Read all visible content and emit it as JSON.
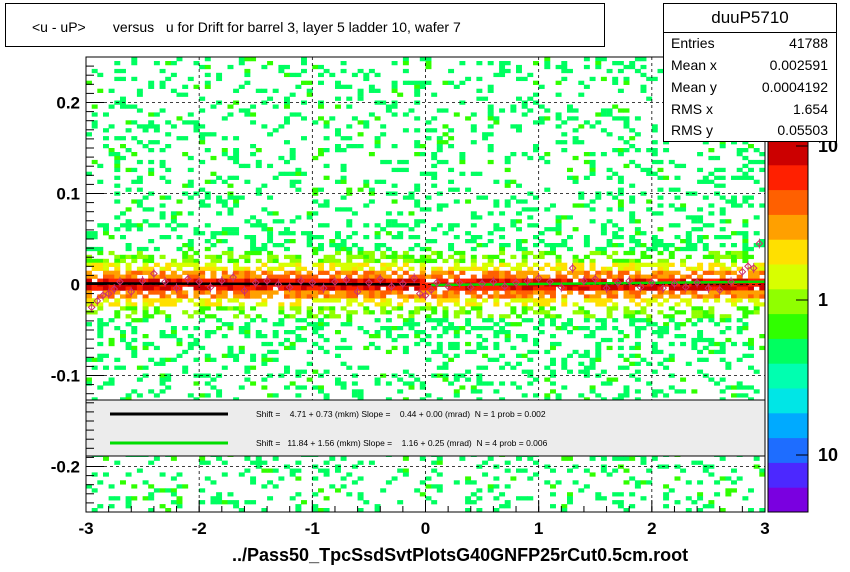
{
  "title": "<u - uP>       versus   u for Drift for barrel 3, layer 5 ladder 10, wafer 7",
  "stats": {
    "name": "duuP5710",
    "rows": [
      {
        "key": "Entries",
        "value": "41788"
      },
      {
        "key": "Mean x",
        "value": "0.002591"
      },
      {
        "key": "Mean y",
        "value": "0.0004192"
      },
      {
        "key": "RMS x",
        "value": "1.654"
      },
      {
        "key": "RMS y",
        "value": "0.05503"
      }
    ]
  },
  "footer": "../Pass50_TpcSsdSvtPlotsG40GNFP25rCut0.5cm.root",
  "chart_data": {
    "type": "heatmap",
    "xlim": [
      -3,
      3
    ],
    "ylim": [
      -0.25,
      0.25
    ],
    "x_ticks": [
      -3,
      -2,
      -1,
      0,
      1,
      2,
      3
    ],
    "y_ticks": [
      -0.2,
      -0.1,
      0,
      0.1,
      0.2
    ],
    "x_tick_labels": [
      "-3",
      "-2",
      "-1",
      "0",
      "1",
      "2",
      "3"
    ],
    "y_tick_labels": [
      "-0.2",
      "-0.1",
      "0",
      "0.1",
      "0.2"
    ],
    "grid": true,
    "color_scale": {
      "type": "log",
      "labels": [
        "10",
        "1",
        "10"
      ],
      "colors": [
        "#7a00e0",
        "#4c28ff",
        "#1e6dff",
        "#00aaff",
        "#00e6e6",
        "#00ffb0",
        "#00ff60",
        "#30ff00",
        "#90ff00",
        "#d8ff00",
        "#ffe000",
        "#ffa000",
        "#ff6000",
        "#ff2000",
        "#cc0000"
      ]
    },
    "legend": {
      "placement": "lower-inner-band",
      "entries": [
        {
          "color": "#000000",
          "text": "Shift =    4.71 + 0.73 (mkm) Slope =    0.44 + 0.00 (mrad)  N = 1 prob = 0.002"
        },
        {
          "color": "#00dd00",
          "text": "Shift =   11.84 + 1.56 (mkm) Slope =    1.16 + 0.25 (mrad)  N = 4 prob = 0.006"
        }
      ]
    },
    "fits": [
      {
        "x": [
          -3,
          -0.05
        ],
        "y": [
          0.0013,
          0.0001
        ]
      },
      {
        "x": [
          0.05,
          3
        ],
        "y": [
          -0.0005,
          0.003
        ]
      }
    ],
    "profile_points": [
      {
        "x": -2.95,
        "y": -0.025
      },
      {
        "x": -2.9,
        "y": -0.018
      },
      {
        "x": -2.85,
        "y": -0.012
      },
      {
        "x": -2.8,
        "y": -0.01
      },
      {
        "x": -2.75,
        "y": -0.005
      },
      {
        "x": -2.7,
        "y": 0.003
      },
      {
        "x": -2.6,
        "y": -0.008
      },
      {
        "x": -2.5,
        "y": 0.004
      },
      {
        "x": -2.4,
        "y": 0.012
      },
      {
        "x": -2.3,
        "y": 0.003
      },
      {
        "x": -2.2,
        "y": -0.004
      },
      {
        "x": -2.1,
        "y": 0.006
      },
      {
        "x": -2.0,
        "y": 0.003
      },
      {
        "x": -1.9,
        "y": -0.003
      },
      {
        "x": -1.8,
        "y": 0.004
      },
      {
        "x": -1.7,
        "y": 0.008
      },
      {
        "x": -1.6,
        "y": -0.007
      },
      {
        "x": -1.5,
        "y": 0.002
      },
      {
        "x": -1.4,
        "y": 0.004
      },
      {
        "x": -1.3,
        "y": 0.0
      },
      {
        "x": -1.2,
        "y": -0.003
      },
      {
        "x": -1.1,
        "y": 0.004
      },
      {
        "x": -1.0,
        "y": 0.002
      },
      {
        "x": -0.9,
        "y": -0.004
      },
      {
        "x": -0.8,
        "y": 0.003
      },
      {
        "x": -0.7,
        "y": 0.005
      },
      {
        "x": -0.6,
        "y": -0.008
      },
      {
        "x": -0.5,
        "y": 0.002
      },
      {
        "x": -0.4,
        "y": 0.006
      },
      {
        "x": -0.3,
        "y": -0.002
      },
      {
        "x": -0.2,
        "y": 0.001
      },
      {
        "x": -0.1,
        "y": 0.007
      },
      {
        "x": -0.05,
        "y": -0.01
      },
      {
        "x": 0.0,
        "y": -0.012
      },
      {
        "x": 0.05,
        "y": -0.006
      },
      {
        "x": 0.1,
        "y": 0.002
      },
      {
        "x": 0.2,
        "y": -0.002
      },
      {
        "x": 0.3,
        "y": 0.002
      },
      {
        "x": 0.4,
        "y": -0.003
      },
      {
        "x": 0.5,
        "y": 0.001
      },
      {
        "x": 0.6,
        "y": 0.003
      },
      {
        "x": 0.7,
        "y": -0.002
      },
      {
        "x": 0.8,
        "y": 0.002
      },
      {
        "x": 0.9,
        "y": 0.004
      },
      {
        "x": 1.0,
        "y": 0.007
      },
      {
        "x": 1.1,
        "y": 0.003
      },
      {
        "x": 1.2,
        "y": -0.003
      },
      {
        "x": 1.3,
        "y": 0.018
      },
      {
        "x": 1.4,
        "y": 0.004
      },
      {
        "x": 1.5,
        "y": 0.006
      },
      {
        "x": 1.6,
        "y": -0.004
      },
      {
        "x": 1.7,
        "y": 0.002
      },
      {
        "x": 1.8,
        "y": 0.004
      },
      {
        "x": 1.9,
        "y": -0.003
      },
      {
        "x": 2.0,
        "y": 0.002
      },
      {
        "x": 2.1,
        "y": -0.004
      },
      {
        "x": 2.2,
        "y": 0.001
      },
      {
        "x": 2.3,
        "y": -0.003
      },
      {
        "x": 2.4,
        "y": 0.002
      },
      {
        "x": 2.5,
        "y": -0.004
      },
      {
        "x": 2.6,
        "y": -0.006
      },
      {
        "x": 2.7,
        "y": 0.003
      },
      {
        "x": 2.8,
        "y": 0.014
      },
      {
        "x": 2.85,
        "y": 0.02
      },
      {
        "x": 2.9,
        "y": 0.018
      },
      {
        "x": 2.95,
        "y": 0.045
      }
    ]
  }
}
